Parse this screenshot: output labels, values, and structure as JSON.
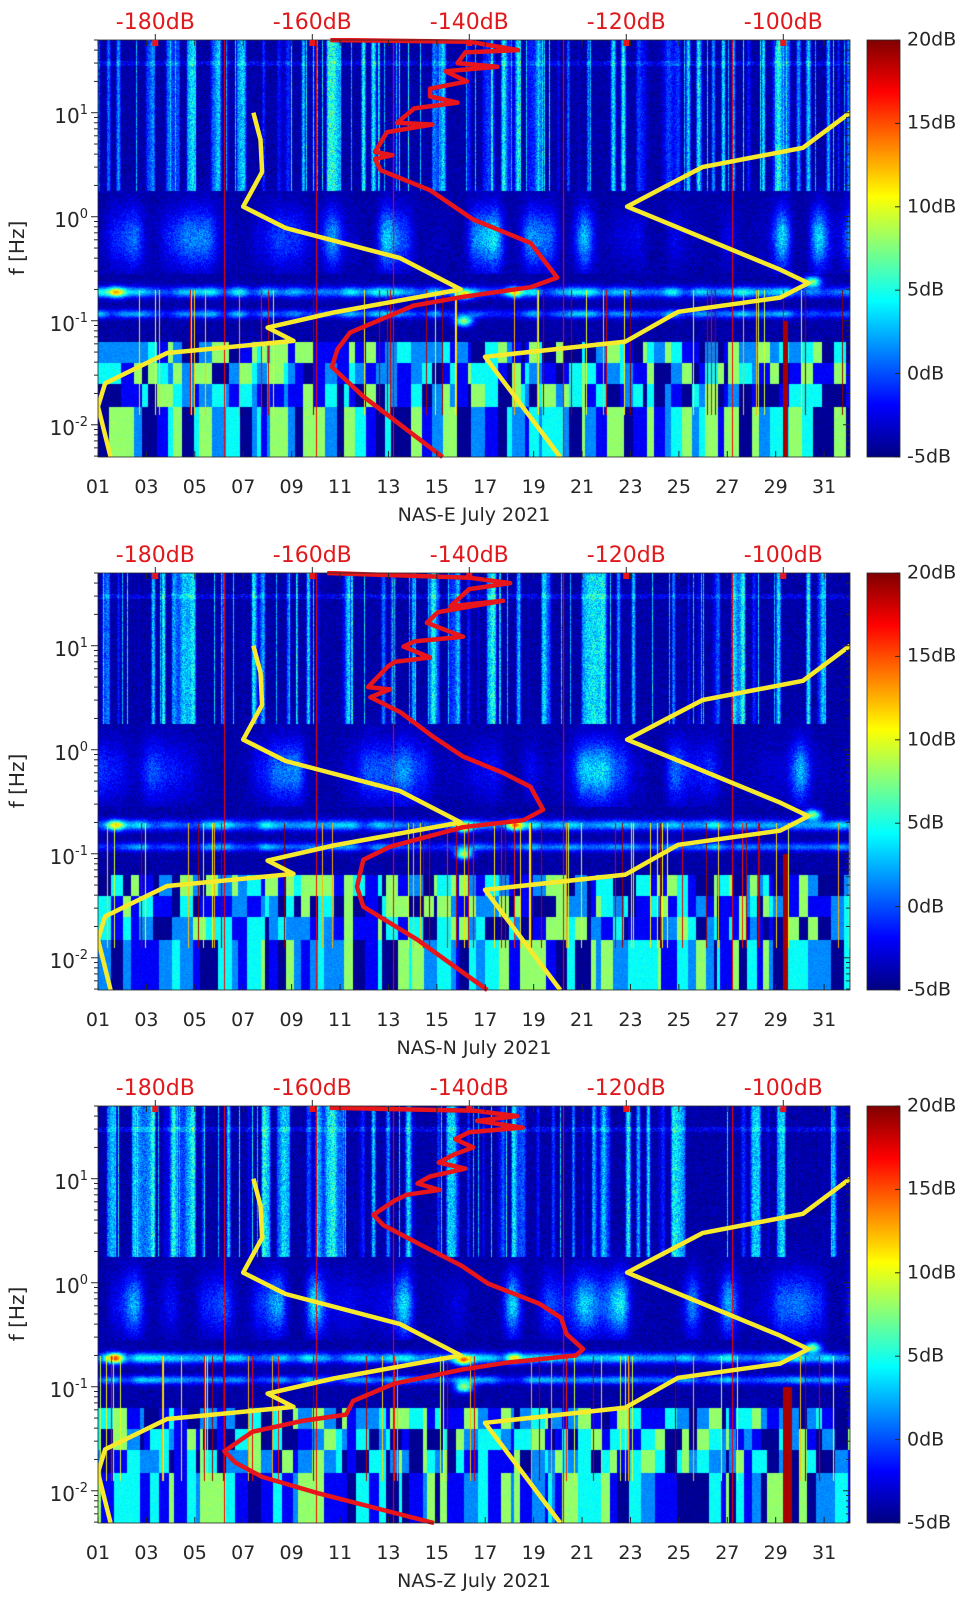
{
  "colorbar": {
    "range": [
      -5,
      20
    ],
    "ticks": [
      20,
      15,
      10,
      5,
      0,
      -5
    ],
    "tick_labels": [
      "20dB",
      "15dB",
      "10dB",
      "5dB",
      "0dB",
      "-5dB"
    ],
    "colormap": "jet"
  },
  "chart_data": [
    {
      "type": "heatmap",
      "xlabel": "NAS-E July 2021",
      "ylabel": "f [Hz]",
      "xlim": [
        1,
        32.07
      ],
      "ylim": [
        0.0049,
        50
      ],
      "yscale": "log",
      "xticks": [
        1,
        3,
        5,
        7,
        9,
        11,
        13,
        15,
        17,
        19,
        21,
        23,
        25,
        27,
        29,
        31
      ],
      "xtick_labels": [
        "01",
        "03",
        "05",
        "07",
        "09",
        "11",
        "13",
        "15",
        "17",
        "19",
        "21",
        "23",
        "25",
        "27",
        "29",
        "31"
      ],
      "yticks": [
        0.01,
        0.1,
        1,
        10
      ],
      "ytick_labels": [
        {
          "base": "10",
          "exp": "-2"
        },
        {
          "base": "10",
          "exp": "-1"
        },
        {
          "base": "10",
          "exp": "0"
        },
        {
          "base": "10",
          "exp": "1"
        }
      ],
      "top_xlim": [
        -187.3,
        -91.5
      ],
      "top_xticks": [
        -180,
        -160,
        -140,
        -120,
        -100
      ],
      "top_xtick_labels": [
        "-180dB",
        "-160dB",
        "-140dB",
        "-120dB",
        "-100dB"
      ],
      "series": [
        {
          "color": "#e8151b",
          "points": [
            [
              -157.7,
              50
            ],
            [
              -139.9,
              48
            ],
            [
              -133.8,
              40
            ],
            [
              -140.5,
              38
            ],
            [
              -141.5,
              30
            ],
            [
              -136.4,
              27.7
            ],
            [
              -143,
              25
            ],
            [
              -140.3,
              20
            ],
            [
              -145,
              17
            ],
            [
              -145,
              14.3
            ],
            [
              -141.5,
              12.5
            ],
            [
              -147,
              11
            ],
            [
              -149.2,
              8
            ],
            [
              -144.7,
              7.7
            ],
            [
              -150.5,
              6.5
            ],
            [
              -152,
              4.2
            ],
            [
              -149.8,
              3.9
            ],
            [
              -152,
              3.6
            ],
            [
              -151.3,
              2.8
            ],
            [
              -145,
              1.8
            ],
            [
              -139.5,
              0.94
            ],
            [
              -132.2,
              0.56
            ],
            [
              -128.8,
              0.26
            ],
            [
              -132.2,
              0.21
            ],
            [
              -140.8,
              0.17
            ],
            [
              -147.1,
              0.14
            ],
            [
              -155.2,
              0.077
            ],
            [
              -156.8,
              0.053
            ],
            [
              -157.5,
              0.036
            ],
            [
              -153.5,
              0.0187
            ],
            [
              -143.4,
              0.0049
            ]
          ]
        },
        {
          "color": "#f7e92c",
          "points": [
            [
              -167.5,
              10
            ],
            [
              -166.6,
              5.5
            ],
            [
              -166.4,
              2.7
            ],
            [
              -168.8,
              1.25
            ],
            [
              -163.4,
              0.78
            ],
            [
              -148.8,
              0.4
            ],
            [
              -141.1,
              0.2
            ],
            [
              -157.3,
              0.12
            ],
            [
              -165.7,
              0.086
            ],
            [
              -162.4,
              0.064
            ],
            [
              -178.5,
              0.049
            ],
            [
              -186.4,
              0.025
            ],
            [
              -187.3,
              0.015
            ],
            [
              -185.7,
              0.0049
            ]
          ]
        },
        {
          "color": "#f7e92c",
          "points": [
            [
              -91.5,
              10
            ],
            [
              -97.5,
              4.6
            ],
            [
              -110.3,
              3.0
            ],
            [
              -119.9,
              1.25
            ],
            [
              -100.4,
              0.31
            ],
            [
              -96.8,
              0.23
            ],
            [
              -100.4,
              0.167
            ],
            [
              -113.4,
              0.122
            ],
            [
              -120.1,
              0.063
            ],
            [
              -138,
              0.045
            ],
            [
              -128.4,
              0.0049
            ]
          ]
        }
      ]
    },
    {
      "type": "heatmap",
      "xlabel": "NAS-N July 2021",
      "ylabel": "f [Hz]",
      "xlim": [
        1,
        32.07
      ],
      "ylim": [
        0.0049,
        50
      ],
      "yscale": "log",
      "xticks": [
        1,
        3,
        5,
        7,
        9,
        11,
        13,
        15,
        17,
        19,
        21,
        23,
        25,
        27,
        29,
        31
      ],
      "xtick_labels": [
        "01",
        "03",
        "05",
        "07",
        "09",
        "11",
        "13",
        "15",
        "17",
        "19",
        "21",
        "23",
        "25",
        "27",
        "29",
        "31"
      ],
      "yticks": [
        0.01,
        0.1,
        1,
        10
      ],
      "ytick_labels": [
        {
          "base": "10",
          "exp": "-2"
        },
        {
          "base": "10",
          "exp": "-1"
        },
        {
          "base": "10",
          "exp": "0"
        },
        {
          "base": "10",
          "exp": "1"
        }
      ],
      "top_xlim": [
        -187.3,
        -91.5
      ],
      "top_xticks": [
        -180,
        -160,
        -140,
        -120,
        -100
      ],
      "top_xtick_labels": [
        "-180dB",
        "-160dB",
        "-140dB",
        "-120dB",
        "-100dB"
      ],
      "series": [
        {
          "color": "#e8151b",
          "points": [
            [
              -158.1,
              50
            ],
            [
              -139.9,
              45
            ],
            [
              -134.8,
              40
            ],
            [
              -140,
              35
            ],
            [
              -142.4,
              24
            ],
            [
              -135.7,
              27
            ],
            [
              -144,
              21
            ],
            [
              -145.4,
              16.6
            ],
            [
              -140.8,
              12.2
            ],
            [
              -147,
              11
            ],
            [
              -148.4,
              9.8
            ],
            [
              -145,
              7.7
            ],
            [
              -149.5,
              7
            ],
            [
              -150.4,
              6.3
            ],
            [
              -152.9,
              4.0
            ],
            [
              -150.1,
              3.8
            ],
            [
              -152.6,
              3.2
            ],
            [
              -148.8,
              2.3
            ],
            [
              -144.6,
              1.33
            ],
            [
              -140.8,
              0.86
            ],
            [
              -135.7,
              0.6
            ],
            [
              -132.2,
              0.44
            ],
            [
              -130.6,
              0.265
            ],
            [
              -133.1,
              0.21
            ],
            [
              -140.8,
              0.18
            ],
            [
              -150.1,
              0.117
            ],
            [
              -153.5,
              0.0875
            ],
            [
              -154.3,
              0.048
            ],
            [
              -153.5,
              0.031
            ],
            [
              -146.6,
              0.0149
            ],
            [
              -137.7,
              0.0049
            ]
          ]
        },
        {
          "color": "#f7e92c",
          "points": [
            [
              -167.5,
              10
            ],
            [
              -166.6,
              5.5
            ],
            [
              -166.4,
              2.7
            ],
            [
              -168.8,
              1.25
            ],
            [
              -163.4,
              0.78
            ],
            [
              -148.8,
              0.4
            ],
            [
              -141.1,
              0.2
            ],
            [
              -157.3,
              0.12
            ],
            [
              -165.7,
              0.086
            ],
            [
              -162.4,
              0.064
            ],
            [
              -178.5,
              0.049
            ],
            [
              -186.4,
              0.025
            ],
            [
              -187.3,
              0.015
            ],
            [
              -185.7,
              0.0049
            ]
          ]
        },
        {
          "color": "#f7e92c",
          "points": [
            [
              -91.5,
              10
            ],
            [
              -97.5,
              4.6
            ],
            [
              -110.3,
              3.0
            ],
            [
              -119.9,
              1.25
            ],
            [
              -100.4,
              0.31
            ],
            [
              -96.8,
              0.23
            ],
            [
              -100.4,
              0.167
            ],
            [
              -113.4,
              0.122
            ],
            [
              -120.1,
              0.063
            ],
            [
              -138,
              0.045
            ],
            [
              -128.4,
              0.0049
            ]
          ]
        }
      ]
    },
    {
      "type": "heatmap",
      "xlabel": "NAS-Z July 2021",
      "ylabel": "f [Hz]",
      "xlim": [
        1,
        32.07
      ],
      "ylim": [
        0.0049,
        50
      ],
      "yscale": "log",
      "xticks": [
        1,
        3,
        5,
        7,
        9,
        11,
        13,
        15,
        17,
        19,
        21,
        23,
        25,
        27,
        29,
        31
      ],
      "xtick_labels": [
        "01",
        "03",
        "05",
        "07",
        "09",
        "11",
        "13",
        "15",
        "17",
        "19",
        "21",
        "23",
        "25",
        "27",
        "29",
        "31"
      ],
      "yticks": [
        0.01,
        0.1,
        1,
        10
      ],
      "ytick_labels": [
        {
          "base": "10",
          "exp": "-2"
        },
        {
          "base": "10",
          "exp": "-1"
        },
        {
          "base": "10",
          "exp": "0"
        },
        {
          "base": "10",
          "exp": "1"
        }
      ],
      "top_xlim": [
        -187.3,
        -91.5
      ],
      "top_xticks": [
        -180,
        -160,
        -140,
        -120,
        -100
      ],
      "top_xtick_labels": [
        "-180dB",
        "-160dB",
        "-140dB",
        "-120dB",
        "-100dB"
      ],
      "series": [
        {
          "color": "#e8151b",
          "points": [
            [
              -157.8,
              48
            ],
            [
              -139.2,
              45
            ],
            [
              -133.9,
              40
            ],
            [
              -139,
              36
            ],
            [
              -133.2,
              31
            ],
            [
              -140,
              28
            ],
            [
              -141.8,
              24
            ],
            [
              -139.5,
              20
            ],
            [
              -142,
              17
            ],
            [
              -143.9,
              14.3
            ],
            [
              -140.5,
              12.5
            ],
            [
              -145,
              10.5
            ],
            [
              -146.6,
              9.0
            ],
            [
              -143.8,
              7.8
            ],
            [
              -148,
              7
            ],
            [
              -149.6,
              6.1
            ],
            [
              -152.2,
              4.5
            ],
            [
              -151,
              3.6
            ],
            [
              -146.1,
              2.3
            ],
            [
              -141,
              1.46
            ],
            [
              -137.6,
              0.98
            ],
            [
              -131.1,
              0.63
            ],
            [
              -128.3,
              0.46
            ],
            [
              -127.6,
              0.32
            ],
            [
              -125.5,
              0.23
            ],
            [
              -126.4,
              0.2
            ],
            [
              -135.4,
              0.17
            ],
            [
              -141,
              0.146
            ],
            [
              -149.6,
              0.107
            ],
            [
              -154.8,
              0.073
            ],
            [
              -155.7,
              0.054
            ],
            [
              -161.3,
              0.047
            ],
            [
              -167.6,
              0.037
            ],
            [
              -171.2,
              0.024
            ],
            [
              -169.8,
              0.0186
            ],
            [
              -166.4,
              0.0136
            ],
            [
              -159.1,
              0.0094
            ],
            [
              -144.5,
              0.0049
            ]
          ]
        },
        {
          "color": "#f7e92c",
          "points": [
            [
              -167.5,
              10
            ],
            [
              -166.6,
              5.5
            ],
            [
              -166.4,
              2.7
            ],
            [
              -168.8,
              1.25
            ],
            [
              -163.4,
              0.78
            ],
            [
              -148.8,
              0.4
            ],
            [
              -141.1,
              0.2
            ],
            [
              -157.3,
              0.12
            ],
            [
              -165.7,
              0.086
            ],
            [
              -162.4,
              0.064
            ],
            [
              -178.5,
              0.049
            ],
            [
              -186.4,
              0.025
            ],
            [
              -187.3,
              0.015
            ],
            [
              -185.7,
              0.0049
            ]
          ]
        },
        {
          "color": "#f7e92c",
          "points": [
            [
              -91.5,
              10
            ],
            [
              -97.5,
              4.6
            ],
            [
              -110.3,
              3.0
            ],
            [
              -119.9,
              1.25
            ],
            [
              -100.4,
              0.31
            ],
            [
              -96.8,
              0.23
            ],
            [
              -100.4,
              0.167
            ],
            [
              -113.4,
              0.122
            ],
            [
              -120.1,
              0.063
            ],
            [
              -138,
              0.045
            ],
            [
              -128.4,
              0.0049
            ]
          ]
        }
      ]
    }
  ]
}
